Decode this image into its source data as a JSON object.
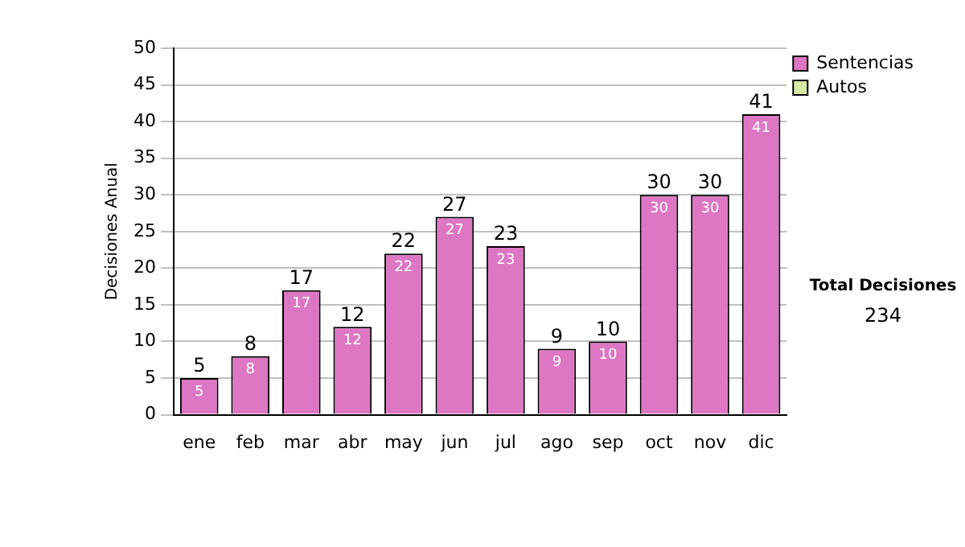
{
  "chart_data": {
    "type": "bar",
    "ylabel": "Decisiones Anual",
    "categories": [
      "ene",
      "feb",
      "mar",
      "abr",
      "may",
      "jun",
      "jul",
      "ago",
      "sep",
      "oct",
      "nov",
      "dic"
    ],
    "series": [
      {
        "name": "Sentencias",
        "color": "#dd77c4",
        "values": [
          5,
          8,
          17,
          12,
          22,
          27,
          23,
          9,
          10,
          30,
          30,
          41
        ]
      },
      {
        "name": "Autos",
        "color": "#d6eaa6",
        "values": [
          null,
          null,
          null,
          null,
          null,
          null,
          null,
          null,
          null,
          null,
          null,
          null
        ]
      }
    ],
    "stacked": true,
    "totals": [
      "5",
      "8",
      "17",
      "12",
      "22",
      "27",
      "23",
      "9",
      "10",
      "30",
      "30",
      "41"
    ],
    "data_labels": true,
    "ylim": [
      0,
      50
    ],
    "yticks": [
      0,
      5,
      10,
      15,
      20,
      25,
      30,
      35,
      40,
      45,
      50
    ],
    "grid": "y",
    "legend": "right",
    "annotations": [
      "Total Decisiones",
      "234"
    ]
  }
}
